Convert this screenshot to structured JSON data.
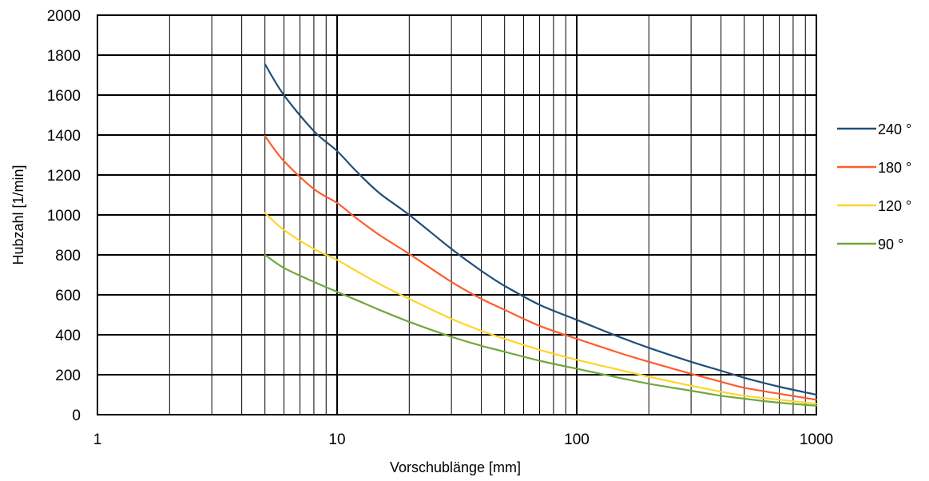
{
  "chart_data": {
    "type": "line",
    "title": "",
    "xlabel": "Vorschublänge [mm]",
    "ylabel": "Hubzahl [1/min]",
    "x_scale": "log",
    "xlim": [
      1,
      1000
    ],
    "ylim": [
      0,
      2000
    ],
    "x_ticks": [
      1,
      10,
      100,
      1000
    ],
    "x_tick_labels": [
      "1",
      "10",
      "100",
      "1000"
    ],
    "y_ticks": [
      0,
      200,
      400,
      600,
      800,
      1000,
      1200,
      1400,
      1600,
      1800,
      2000
    ],
    "y_tick_labels": [
      "0",
      "200",
      "400",
      "600",
      "800",
      "1000",
      "1200",
      "1400",
      "1600",
      "1800",
      "2000"
    ],
    "grid": true,
    "legend_position": "right",
    "series": [
      {
        "name": "240 °",
        "color": "#1f4e79",
        "x": [
          5,
          6,
          8,
          10,
          12,
          15,
          20,
          30,
          40,
          50,
          70,
          100,
          150,
          200,
          300,
          400,
          500,
          700,
          1000
        ],
        "y": [
          1755,
          1600,
          1420,
          1320,
          1220,
          1110,
          1000,
          830,
          720,
          645,
          550,
          475,
          390,
          335,
          265,
          220,
          185,
          140,
          100
        ]
      },
      {
        "name": "180 °",
        "color": "#ff5b2e",
        "x": [
          5,
          6,
          8,
          10,
          12,
          15,
          20,
          30,
          40,
          50,
          70,
          100,
          150,
          200,
          300,
          400,
          500,
          700,
          1000
        ],
        "y": [
          1395,
          1270,
          1130,
          1060,
          985,
          900,
          805,
          665,
          580,
          525,
          445,
          380,
          310,
          265,
          205,
          165,
          135,
          105,
          75
        ]
      },
      {
        "name": "120 °",
        "color": "#ffd42a",
        "x": [
          5,
          6,
          8,
          10,
          12,
          15,
          20,
          30,
          40,
          50,
          70,
          100,
          150,
          200,
          300,
          400,
          500,
          700,
          1000
        ],
        "y": [
          1010,
          925,
          830,
          775,
          720,
          655,
          580,
          480,
          420,
          380,
          325,
          275,
          225,
          190,
          145,
          115,
          95,
          75,
          55
        ]
      },
      {
        "name": "90 °",
        "color": "#70a83b",
        "x": [
          5,
          6,
          8,
          10,
          12,
          15,
          20,
          30,
          40,
          50,
          70,
          100,
          150,
          200,
          300,
          400,
          500,
          700,
          1000
        ],
        "y": [
          800,
          735,
          665,
          615,
          575,
          525,
          465,
          390,
          345,
          315,
          270,
          230,
          185,
          155,
          120,
          95,
          80,
          60,
          45
        ]
      }
    ]
  }
}
